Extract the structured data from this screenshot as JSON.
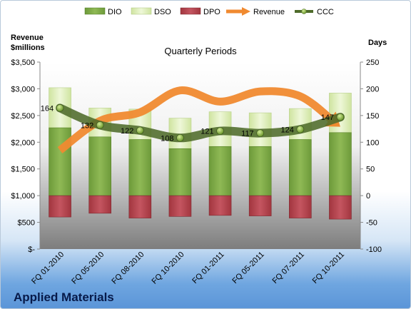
{
  "company": "Applied Materials",
  "chart_data": {
    "type": "bar",
    "subtitle": "Quarterly Periods",
    "left_axis_title": [
      "Revenue",
      "$millions"
    ],
    "right_axis_title": "Days",
    "categories": [
      "FQ 01-2010",
      "FQ 05-2010",
      "FQ 08-2010",
      "FQ 10-2010",
      "FQ 01-2011",
      "FQ 05-2011",
      "FQ 07-2011",
      "FQ 10-2011"
    ],
    "left_ticks": [
      "$3,500",
      "$3,000",
      "$2,500",
      "$2,000",
      "$1,500",
      "$1,000",
      "$500",
      "$-"
    ],
    "right_ticks": [
      "250",
      "200",
      "150",
      "100",
      "50",
      "0",
      "-50",
      "-100"
    ],
    "ylim_left": [
      0,
      3500
    ],
    "ylim_right": [
      -100,
      250
    ],
    "legend": [
      "DIO",
      "DSO",
      "DPO",
      "Revenue",
      "CCC"
    ],
    "colors": {
      "DIO": "#7ea845",
      "DSO": "#d9ecb0",
      "DPO": "#b5424c",
      "Revenue": "#f08a30",
      "CCC": "#4e6b2a"
    },
    "series": [
      {
        "name": "DIO",
        "axis": "right",
        "values": [
          127,
          110,
          105,
          88,
          92,
          92,
          105,
          118
        ]
      },
      {
        "name": "DSO",
        "axis": "right",
        "values": [
          202,
          164,
          162,
          145,
          157,
          155,
          163,
          192
        ]
      },
      {
        "name": "DPO",
        "axis": "right",
        "values": [
          -40,
          -33,
          -42,
          -39,
          -37,
          -38,
          -42,
          -44
        ]
      },
      {
        "name": "Revenue",
        "axis": "left",
        "values": [
          1850,
          2400,
          2560,
          2970,
          2760,
          2950,
          2860,
          2290
        ]
      },
      {
        "name": "CCC",
        "axis": "right",
        "values": [
          164,
          132,
          122,
          108,
          121,
          117,
          124,
          147
        ]
      }
    ],
    "data_labels": [
      "164",
      "132",
      "122",
      "108",
      "121",
      "117",
      "124",
      "147"
    ]
  }
}
